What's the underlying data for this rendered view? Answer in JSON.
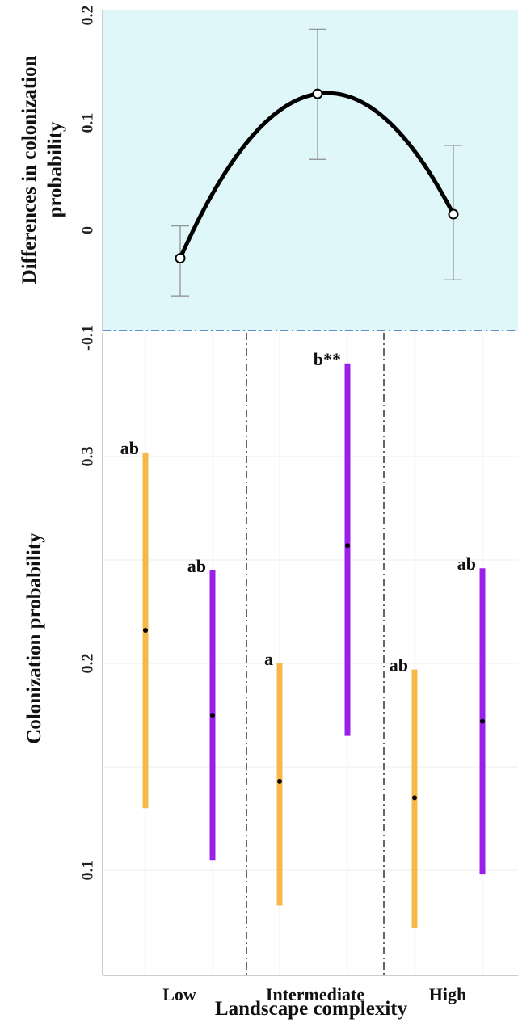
{
  "chart_data": [
    {
      "type": "line",
      "ylabel": [
        "Differences in colonization",
        "probability"
      ],
      "yticks": [
        "0.2",
        "0.1",
        "0",
        "-0.1"
      ],
      "ylim": [
        -0.1,
        0.2
      ],
      "categories": [
        "Low",
        "Intermediate",
        "High"
      ],
      "series": [
        {
          "values": [
            -0.026,
            0.127,
            0.015
          ],
          "err_low": [
            -0.061,
            0.066,
            -0.046
          ],
          "err_high": [
            0.004,
            0.187,
            0.079
          ],
          "color": "#000000"
        }
      ],
      "background": "#e0f7f9",
      "grid": false
    },
    {
      "type": "scatter",
      "ylabel": "Colonization probability",
      "xlabel": "Landscape complexity",
      "yticks": [
        "0.3",
        "0.2",
        "0.1"
      ],
      "ylim": [
        0.065,
        0.355
      ],
      "categories": [
        "Low",
        "Intermediate",
        "High"
      ],
      "colors": [
        "#f7b84a",
        "#9b1fe8"
      ],
      "intervals": [
        {
          "group": "Low",
          "color": "#f7b84a",
          "mean": 0.216,
          "low": 0.13,
          "high": 0.302,
          "label": "ab"
        },
        {
          "group": "Low",
          "color": "#9b1fe8",
          "mean": 0.175,
          "low": 0.105,
          "high": 0.245,
          "label": "ab"
        },
        {
          "group": "Intermediate",
          "color": "#f7b84a",
          "mean": 0.143,
          "low": 0.083,
          "high": 0.2,
          "label": "a"
        },
        {
          "group": "Intermediate",
          "color": "#9b1fe8",
          "mean": 0.257,
          "low": 0.165,
          "high": 0.345,
          "label": "b**"
        },
        {
          "group": "High",
          "color": "#f7b84a",
          "mean": 0.135,
          "low": 0.072,
          "high": 0.197,
          "label": "ab"
        },
        {
          "group": "High",
          "color": "#9b1fe8",
          "mean": 0.172,
          "low": 0.098,
          "high": 0.246,
          "label": "ab"
        }
      ],
      "grid": true
    }
  ]
}
